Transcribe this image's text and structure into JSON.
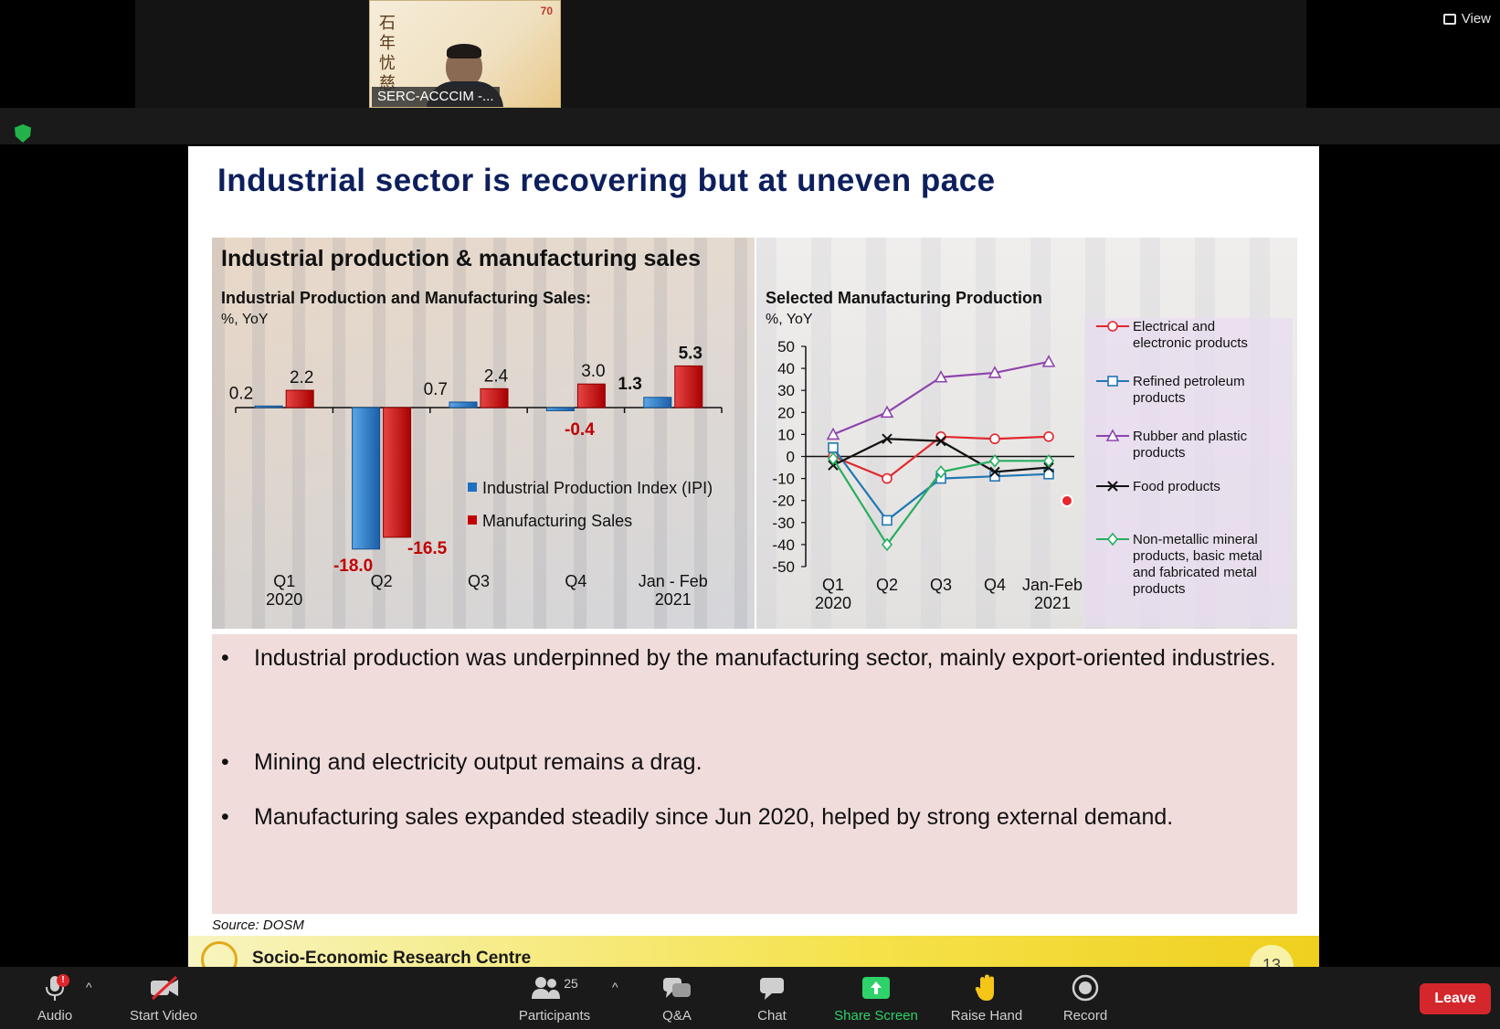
{
  "view_label": "View",
  "participant_tile": {
    "name": "SERC-ACCCIM -...",
    "calligraphy": "石年忧慈",
    "brand": "70"
  },
  "slide": {
    "title": "Industrial sector is recovering but at uneven pace",
    "panel_title": "Industrial production & manufacturing sales",
    "bullets": [
      "Industrial production was underpinned by the manufacturing sector, mainly export-oriented industries.",
      "Mining and electricity output remains a drag.",
      "Manufacturing sales expanded steadily since Jun 2020, helped by strong external demand."
    ],
    "source": "Source:  DOSM",
    "footer_org": "Socio-Economic Research Centre",
    "page_number": "13"
  },
  "chart_data": [
    {
      "type": "bar",
      "title": "Industrial Production and Manufacturing Sales:",
      "subtitle": "%, YoY",
      "categories": [
        "Q1\n2020",
        "Q2",
        "Q3",
        "Q4",
        "Jan - Feb\n2021"
      ],
      "series": [
        {
          "name": "Industrial Production Index (IPI)",
          "values": [
            0.2,
            -18.0,
            0.7,
            -0.4,
            1.3
          ],
          "color": "#1f6fc0"
        },
        {
          "name": "Manufacturing Sales",
          "values": [
            2.2,
            -16.5,
            2.4,
            3.0,
            5.3
          ],
          "color": "#c00000"
        }
      ],
      "data_labels": [
        [
          "0.2",
          "-18.0",
          "0.7",
          "-0.4",
          "1.3"
        ],
        [
          "2.2",
          "-16.5",
          "2.4",
          "3.0",
          "5.3"
        ]
      ],
      "ylim": [
        -20,
        7
      ],
      "legend_position": "center-right"
    },
    {
      "type": "line",
      "title": "Selected Manufacturing Production",
      "subtitle": "%, YoY",
      "categories": [
        "Q1\n2020",
        "Q2",
        "Q3",
        "Q4",
        "Jan-Feb\n2021"
      ],
      "yticks": [
        50,
        40,
        30,
        20,
        10,
        0,
        -10,
        -20,
        -30,
        -40,
        -50
      ],
      "ylim": [
        -50,
        50
      ],
      "series": [
        {
          "name": "Electrical and electronic products",
          "values": [
            0,
            -10,
            9,
            8,
            9
          ],
          "color": "#e0282e",
          "marker": "circle"
        },
        {
          "name": "Refined petroleum products",
          "values": [
            4,
            -29,
            -10,
            -9,
            -8
          ],
          "color": "#1f78b4",
          "marker": "square"
        },
        {
          "name": "Rubber and plastic products",
          "values": [
            10,
            20,
            36,
            38,
            43
          ],
          "color": "#8e44ad",
          "marker": "triangle"
        },
        {
          "name": "Food products",
          "values": [
            -4,
            8,
            7,
            -7,
            -5
          ],
          "color": "#111111",
          "marker": "x"
        },
        {
          "name": "Non-metallic mineral products, basic metal and fabricated metal products",
          "values": [
            -1,
            -40,
            -7,
            -2,
            -2
          ],
          "color": "#27ae60",
          "marker": "diamond"
        }
      ],
      "legend_position": "right"
    }
  ],
  "toolbar": {
    "audio": "Audio",
    "start_video": "Start Video",
    "participants": "Participants",
    "participants_count": "25",
    "qa": "Q&A",
    "chat": "Chat",
    "share_screen": "Share Screen",
    "raise_hand": "Raise Hand",
    "record": "Record",
    "leave": "Leave",
    "audio_badge": "!"
  },
  "colors": {
    "title_navy": "#0d1f5c",
    "share_green": "#2ed26a",
    "leave_red": "#d4272c"
  }
}
